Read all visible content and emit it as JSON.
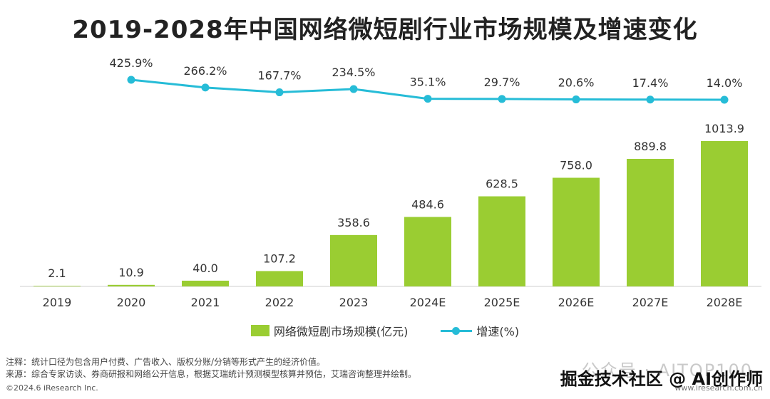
{
  "title": "2019-2028年中国网络微短剧行业市场规模及增速变化",
  "chart_data": {
    "type": "bar",
    "categories": [
      "2019",
      "2020",
      "2021",
      "2022",
      "2023",
      "2024E",
      "2025E",
      "2026E",
      "2027E",
      "2028E"
    ],
    "series": [
      {
        "name": "网络微短剧市场规模(亿元)",
        "type": "bar",
        "values": [
          2.1,
          10.9,
          40.0,
          107.2,
          358.6,
          484.6,
          628.5,
          758.0,
          889.8,
          1013.9
        ],
        "labels": [
          "2.1",
          "10.9",
          "40.0",
          "107.2",
          "358.6",
          "484.6",
          "628.5",
          "758.0",
          "889.8",
          "1013.9"
        ],
        "color": "#9ACD32"
      },
      {
        "name": "增速(%)",
        "type": "line",
        "values": [
          null,
          425.9,
          266.2,
          167.7,
          234.5,
          35.1,
          29.7,
          20.6,
          17.4,
          14.0
        ],
        "labels": [
          "",
          "425.9%",
          "266.2%",
          "167.7%",
          "234.5%",
          "35.1%",
          "29.7%",
          "20.6%",
          "17.4%",
          "14.0%"
        ],
        "color": "#26BCD7"
      }
    ]
  },
  "notes": {
    "line1": "注释：统计口径为包含用户付费、广告收入、版权分账/分销等形式产生的经济价值。",
    "line2": "来源：综合专家访谈、券商研报和网络公开信息，根据艾瑞统计预测模型核算并预估，艾瑞咨询整理并绘制。"
  },
  "footer": {
    "copyright": "©2024.6 iResearch Inc.",
    "url": "www.iresearch.com.cn"
  },
  "watermark": {
    "faint": "公众号 · AITOP100",
    "strong": "掘金技术社区 @ AI创作师"
  }
}
